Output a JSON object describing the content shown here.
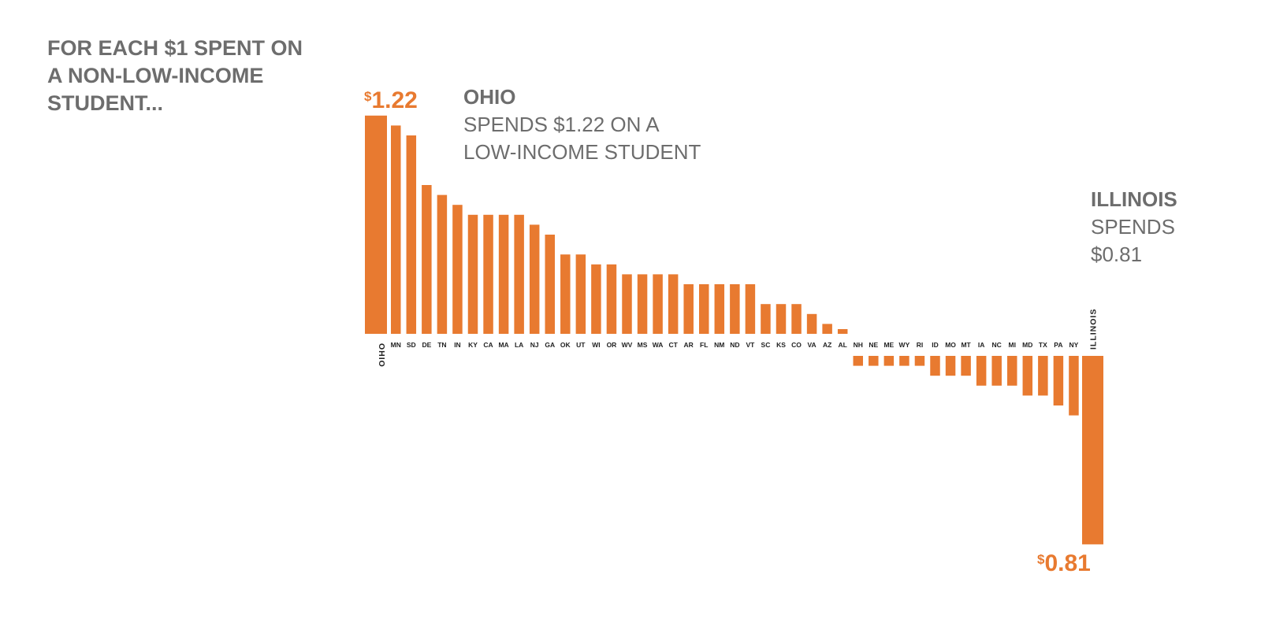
{
  "headline": {
    "lines": [
      "FOR EACH $1 SPENT ON",
      "A NON-LOW-INCOME",
      "STUDENT..."
    ]
  },
  "callouts": {
    "ohio": {
      "name": "OHIO",
      "lines": [
        "SPENDS $1.22 ON A",
        "LOW-INCOME STUDENT"
      ]
    },
    "illinois": {
      "name": "ILLINOIS",
      "lines": [
        "SPENDS",
        "$0.81"
      ]
    }
  },
  "colors": {
    "bar": "#e87a30",
    "text": "#6d6d6d",
    "label": "#222222"
  },
  "chart_data": {
    "type": "bar",
    "title": "",
    "xlabel": "",
    "ylabel": "",
    "baseline": 1.0,
    "ylim": [
      0.8,
      1.23
    ],
    "grid": false,
    "legend": "none",
    "categories": [
      "OHIO",
      "MN",
      "SD",
      "DE",
      "TN",
      "IN",
      "KY",
      "CA",
      "MA",
      "LA",
      "NJ",
      "GA",
      "OK",
      "UT",
      "WI",
      "OR",
      "WV",
      "MS",
      "WA",
      "CT",
      "AR",
      "FL",
      "NM",
      "ND",
      "VT",
      "SC",
      "KS",
      "CO",
      "VA",
      "AZ",
      "AL",
      "NH",
      "NE",
      "ME",
      "WY",
      "RI",
      "ID",
      "MO",
      "MT",
      "IA",
      "NC",
      "MI",
      "MD",
      "TX",
      "PA",
      "NY",
      "ILLINOIS"
    ],
    "values": [
      1.22,
      1.21,
      1.2,
      1.15,
      1.14,
      1.13,
      1.12,
      1.12,
      1.12,
      1.12,
      1.11,
      1.1,
      1.08,
      1.08,
      1.07,
      1.07,
      1.06,
      1.06,
      1.06,
      1.06,
      1.05,
      1.05,
      1.05,
      1.05,
      1.05,
      1.03,
      1.03,
      1.03,
      1.02,
      1.01,
      1.0,
      0.99,
      0.99,
      0.99,
      0.99,
      0.99,
      0.98,
      0.98,
      0.98,
      0.97,
      0.97,
      0.97,
      0.96,
      0.96,
      0.95,
      0.94,
      0.81
    ],
    "value_labels": {
      "first": "1.22",
      "last": "0.81",
      "currency": "$"
    }
  }
}
